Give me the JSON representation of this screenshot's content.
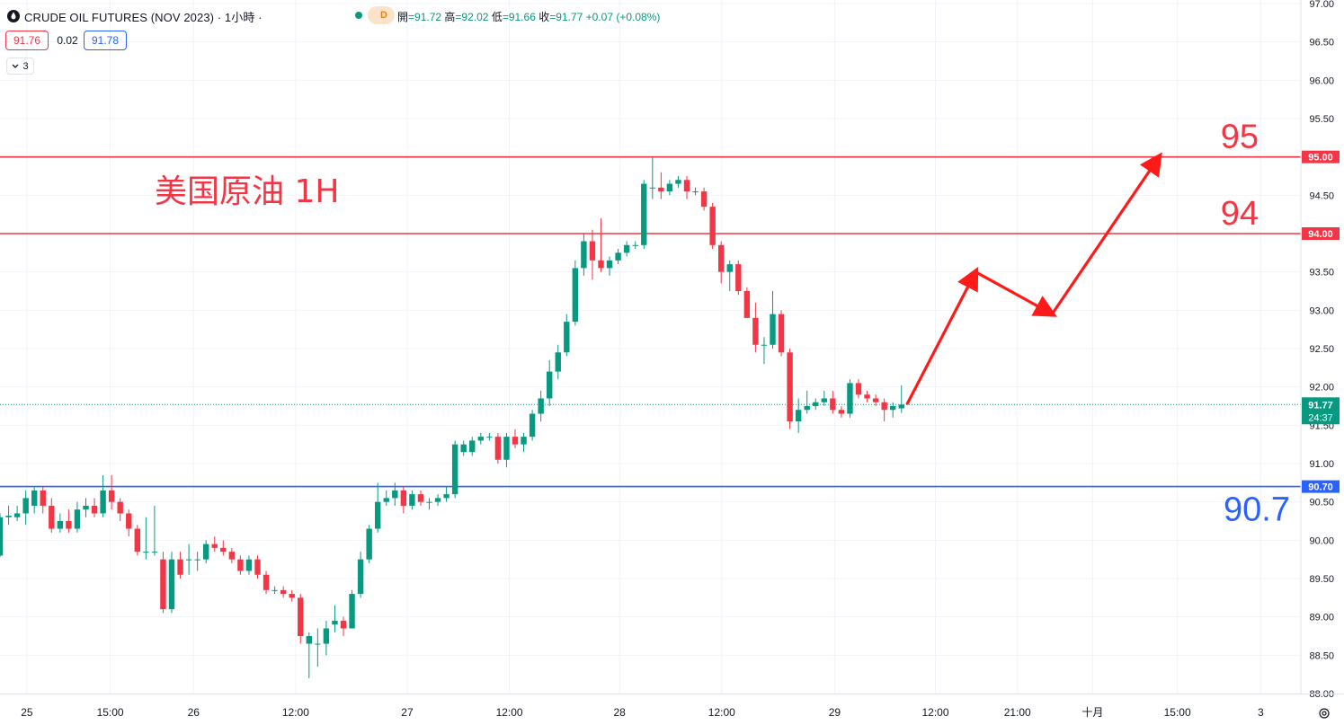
{
  "header": {
    "title": "CRUDE OIL FUTURES (NOV 2023) · 1小時 ·",
    "status_badge": "D",
    "ohlc": [
      {
        "label": "開",
        "value": "=91.72"
      },
      {
        "label": "高",
        "value": "=92.02"
      },
      {
        "label": "低",
        "value": "=91.66"
      },
      {
        "label": "收",
        "value": "=91.77"
      },
      {
        "label": "",
        "value": "+0.07"
      },
      {
        "label": "",
        "value": "(+0.08%)"
      }
    ],
    "bid": "91.76",
    "spread": "0.02",
    "ask": "91.78",
    "indicator_count": "3"
  },
  "colors": {
    "up": "#089981",
    "down": "#f23645",
    "blue": "#2962ff",
    "grid": "#f0f3fa"
  },
  "chart_data": {
    "type": "candlestick",
    "title": "美国原油 1H",
    "ylim": [
      88.0,
      97.0
    ],
    "y_ticks": [
      "88.00",
      "88.50",
      "89.00",
      "89.50",
      "90.00",
      "90.50",
      "91.00",
      "91.50",
      "92.00",
      "92.50",
      "93.00",
      "93.50",
      "94.00",
      "94.50",
      "95.00",
      "95.50",
      "96.00",
      "96.50",
      "97.00"
    ],
    "x_ticks": [
      "25",
      "15:00",
      "26",
      "12:00",
      "27",
      "12:00",
      "28",
      "12:00",
      "29",
      "12:00",
      "21:00",
      "十月",
      "15:00",
      "3"
    ],
    "x_tick_pos": [
      0.02,
      0.082,
      0.144,
      0.22,
      0.303,
      0.379,
      0.461,
      0.537,
      0.621,
      0.696,
      0.757,
      0.813,
      0.876,
      0.938
    ],
    "last_price": {
      "value": 91.77,
      "label": "91.77",
      "countdown": "24:37"
    },
    "levels": [
      {
        "value": 95.0,
        "axis_label": "95.00",
        "big_label": "95",
        "color": "#f23645"
      },
      {
        "value": 94.0,
        "axis_label": "94.00",
        "big_label": "94",
        "color": "#f23645"
      },
      {
        "value": 90.7,
        "axis_label": "90.70",
        "big_label": "90.7",
        "color": "#2962ff"
      }
    ],
    "projection": [
      [
        91.77,
        0
      ],
      [
        93.5,
        9
      ],
      [
        92.95,
        19
      ],
      [
        95.0,
        33
      ]
    ],
    "candles": [
      [
        89.8,
        90.3,
        90.35,
        89.78
      ],
      [
        90.3,
        90.32,
        90.45,
        90.2
      ],
      [
        90.3,
        90.35,
        90.45,
        90.25
      ],
      [
        90.35,
        90.55,
        90.65,
        90.2
      ],
      [
        90.45,
        90.65,
        90.7,
        90.35
      ],
      [
        90.65,
        90.45,
        90.7,
        90.35
      ],
      [
        90.45,
        90.15,
        90.55,
        90.1
      ],
      [
        90.15,
        90.25,
        90.35,
        90.1
      ],
      [
        90.25,
        90.15,
        90.4,
        90.1
      ],
      [
        90.15,
        90.4,
        90.5,
        90.1
      ],
      [
        90.4,
        90.45,
        90.55,
        90.3
      ],
      [
        90.45,
        90.35,
        90.55,
        90.3
      ],
      [
        90.35,
        90.65,
        90.85,
        90.3
      ],
      [
        90.65,
        90.5,
        90.85,
        90.4
      ],
      [
        90.5,
        90.35,
        90.55,
        90.25
      ],
      [
        90.35,
        90.15,
        90.4,
        90.05
      ],
      [
        90.15,
        89.85,
        90.2,
        89.8
      ],
      [
        89.85,
        89.85,
        90.3,
        89.75
      ],
      [
        89.85,
        89.85,
        90.45,
        89.8
      ],
      [
        89.75,
        89.1,
        89.85,
        89.05
      ],
      [
        89.1,
        89.75,
        89.85,
        89.05
      ],
      [
        89.75,
        89.55,
        89.85,
        89.5
      ],
      [
        89.75,
        89.75,
        89.95,
        89.55
      ],
      [
        89.75,
        89.75,
        89.85,
        89.6
      ],
      [
        89.75,
        89.95,
        90.0,
        89.7
      ],
      [
        89.95,
        89.9,
        90.05,
        89.85
      ],
      [
        89.9,
        89.85,
        90.0,
        89.8
      ],
      [
        89.85,
        89.75,
        89.9,
        89.7
      ],
      [
        89.75,
        89.6,
        89.8,
        89.55
      ],
      [
        89.6,
        89.75,
        89.8,
        89.55
      ],
      [
        89.75,
        89.55,
        89.8,
        89.5
      ],
      [
        89.55,
        89.35,
        89.6,
        89.3
      ],
      [
        89.35,
        89.35,
        89.4,
        89.3
      ],
      [
        89.35,
        89.3,
        89.4,
        89.25
      ],
      [
        89.3,
        89.25,
        89.35,
        89.2
      ],
      [
        89.25,
        88.75,
        89.3,
        88.65
      ],
      [
        88.65,
        88.75,
        88.8,
        88.2
      ],
      [
        88.65,
        88.65,
        88.85,
        88.35
      ],
      [
        88.65,
        88.85,
        88.95,
        88.5
      ],
      [
        88.9,
        88.95,
        89.15,
        88.8
      ],
      [
        88.95,
        88.85,
        89.0,
        88.75
      ],
      [
        88.85,
        89.3,
        89.35,
        88.85
      ],
      [
        89.3,
        89.75,
        89.85,
        89.25
      ],
      [
        89.75,
        90.15,
        90.2,
        89.7
      ],
      [
        90.15,
        90.5,
        90.75,
        90.1
      ],
      [
        90.5,
        90.55,
        90.65,
        90.45
      ],
      [
        90.55,
        90.65,
        90.75,
        90.45
      ],
      [
        90.65,
        90.45,
        90.7,
        90.35
      ],
      [
        90.45,
        90.6,
        90.65,
        90.4
      ],
      [
        90.6,
        90.5,
        90.65,
        90.45
      ],
      [
        90.5,
        90.5,
        90.55,
        90.4
      ],
      [
        90.5,
        90.55,
        90.6,
        90.45
      ],
      [
        90.55,
        90.6,
        90.7,
        90.5
      ],
      [
        90.6,
        91.25,
        91.3,
        90.55
      ],
      [
        91.15,
        91.25,
        91.3,
        91.1
      ],
      [
        91.15,
        91.3,
        91.35,
        91.1
      ],
      [
        91.3,
        91.35,
        91.4,
        91.25
      ],
      [
        91.35,
        91.35,
        91.4,
        91.3
      ],
      [
        91.35,
        91.05,
        91.4,
        91.0
      ],
      [
        91.05,
        91.35,
        91.4,
        90.95
      ],
      [
        91.35,
        91.25,
        91.45,
        91.2
      ],
      [
        91.25,
        91.35,
        91.4,
        91.15
      ],
      [
        91.35,
        91.65,
        91.7,
        91.3
      ],
      [
        91.65,
        91.85,
        91.95,
        91.55
      ],
      [
        91.85,
        92.2,
        92.35,
        91.75
      ],
      [
        92.2,
        92.45,
        92.55,
        92.1
      ],
      [
        92.45,
        92.85,
        92.95,
        92.4
      ],
      [
        92.85,
        93.55,
        93.65,
        92.8
      ],
      [
        93.55,
        93.9,
        94.0,
        93.45
      ],
      [
        93.9,
        93.65,
        94.05,
        93.4
      ],
      [
        93.65,
        93.55,
        94.2,
        93.5
      ],
      [
        93.55,
        93.65,
        93.7,
        93.45
      ],
      [
        93.65,
        93.75,
        93.8,
        93.6
      ],
      [
        93.75,
        93.85,
        93.9,
        93.7
      ],
      [
        93.85,
        93.85,
        93.9,
        93.8
      ],
      [
        93.85,
        94.65,
        94.7,
        93.8
      ],
      [
        94.6,
        94.6,
        95.0,
        94.45
      ],
      [
        94.6,
        94.55,
        94.8,
        94.45
      ],
      [
        94.55,
        94.65,
        94.7,
        94.5
      ],
      [
        94.65,
        94.7,
        94.75,
        94.6
      ],
      [
        94.7,
        94.55,
        94.75,
        94.45
      ],
      [
        94.55,
        94.55,
        94.6,
        94.5
      ],
      [
        94.55,
        94.35,
        94.6,
        94.3
      ],
      [
        94.35,
        93.85,
        94.4,
        93.8
      ],
      [
        93.85,
        93.5,
        93.9,
        93.35
      ],
      [
        93.5,
        93.6,
        93.65,
        93.25
      ],
      [
        93.6,
        93.25,
        93.65,
        93.2
      ],
      [
        93.25,
        92.9,
        93.3,
        92.9
      ],
      [
        92.9,
        92.55,
        93.1,
        92.45
      ],
      [
        92.55,
        92.55,
        92.65,
        92.3
      ],
      [
        92.55,
        92.95,
        93.25,
        92.5
      ],
      [
        92.95,
        92.45,
        93.0,
        92.4
      ],
      [
        92.45,
        91.55,
        92.5,
        91.45
      ],
      [
        91.55,
        91.7,
        91.85,
        91.4
      ],
      [
        91.7,
        91.75,
        91.95,
        91.65
      ],
      [
        91.75,
        91.8,
        91.85,
        91.7
      ],
      [
        91.8,
        91.85,
        91.95,
        91.75
      ],
      [
        91.85,
        91.7,
        91.95,
        91.65
      ],
      [
        91.7,
        91.65,
        91.75,
        91.6
      ],
      [
        91.65,
        92.05,
        92.1,
        91.6
      ],
      [
        92.05,
        91.9,
        92.1,
        91.85
      ],
      [
        91.9,
        91.85,
        91.95,
        91.8
      ],
      [
        91.85,
        91.8,
        91.9,
        91.75
      ],
      [
        91.8,
        91.7,
        91.85,
        91.55
      ],
      [
        91.7,
        91.75,
        91.8,
        91.6
      ],
      [
        91.72,
        91.77,
        92.02,
        91.66
      ]
    ]
  }
}
